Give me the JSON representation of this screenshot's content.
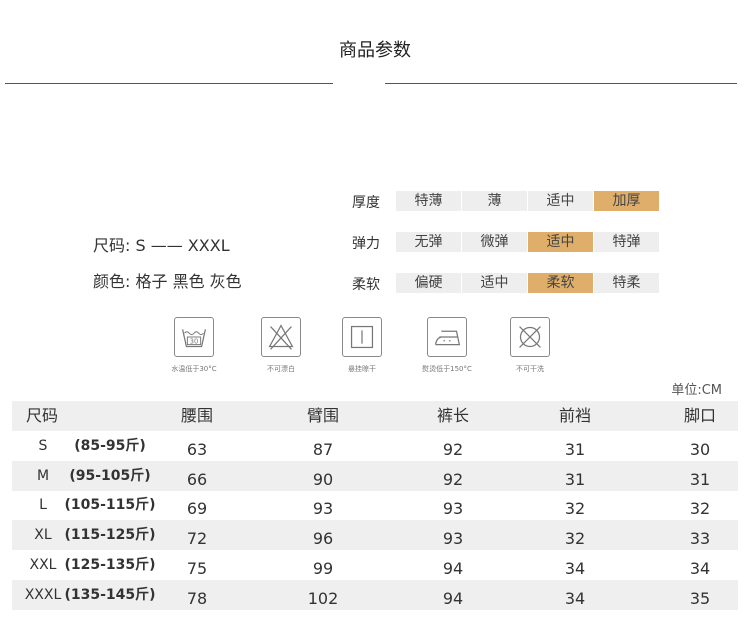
{
  "title": "商品参数",
  "size_info": "尺码: S —— XXXL",
  "color_info": "颜色: 格子 黑色 灰色",
  "attributes": [
    {
      "label": "厚度",
      "options": [
        "特薄",
        "薄",
        "适中",
        "加厚"
      ],
      "selected": 3
    },
    {
      "label": "弹力",
      "options": [
        "无弹",
        "微弹",
        "适中",
        "特弹"
      ],
      "selected": 2
    },
    {
      "label": "柔软",
      "options": [
        "偏硬",
        "适中",
        "柔软",
        "特柔"
      ],
      "selected": 2
    }
  ],
  "accent_color": "#dfae6a",
  "care": [
    {
      "icon": "wash-30-icon",
      "label": "水温低于30°C",
      "text": "30"
    },
    {
      "icon": "no-bleach-icon",
      "label": "不可漂白"
    },
    {
      "icon": "hang-dry-icon",
      "label": "悬挂晾干"
    },
    {
      "icon": "iron-icon",
      "label": "熨烫低于150°C"
    },
    {
      "icon": "no-dry-clean-icon",
      "label": "不可干洗"
    }
  ],
  "unit": "单位:CM",
  "table": {
    "headers": [
      "尺码",
      "腰围",
      "臂围",
      "裤长",
      "前裆",
      "脚口"
    ],
    "rows": [
      {
        "size": "S",
        "weight": "(85-95斤)",
        "values": [
          "63",
          "87",
          "92",
          "31",
          "30"
        ]
      },
      {
        "size": "M",
        "weight": "(95-105斤)",
        "values": [
          "66",
          "90",
          "92",
          "31",
          "31"
        ]
      },
      {
        "size": "L",
        "weight": "(105-115斤)",
        "values": [
          "69",
          "93",
          "93",
          "32",
          "32"
        ]
      },
      {
        "size": "XL",
        "weight": "(115-125斤)",
        "values": [
          "72",
          "96",
          "93",
          "32",
          "33"
        ]
      },
      {
        "size": "XXL",
        "weight": "(125-135斤)",
        "values": [
          "75",
          "99",
          "94",
          "34",
          "34"
        ]
      },
      {
        "size": "XXXL",
        "weight": "(135-145斤)",
        "values": [
          "78",
          "102",
          "94",
          "34",
          "35"
        ]
      }
    ]
  }
}
